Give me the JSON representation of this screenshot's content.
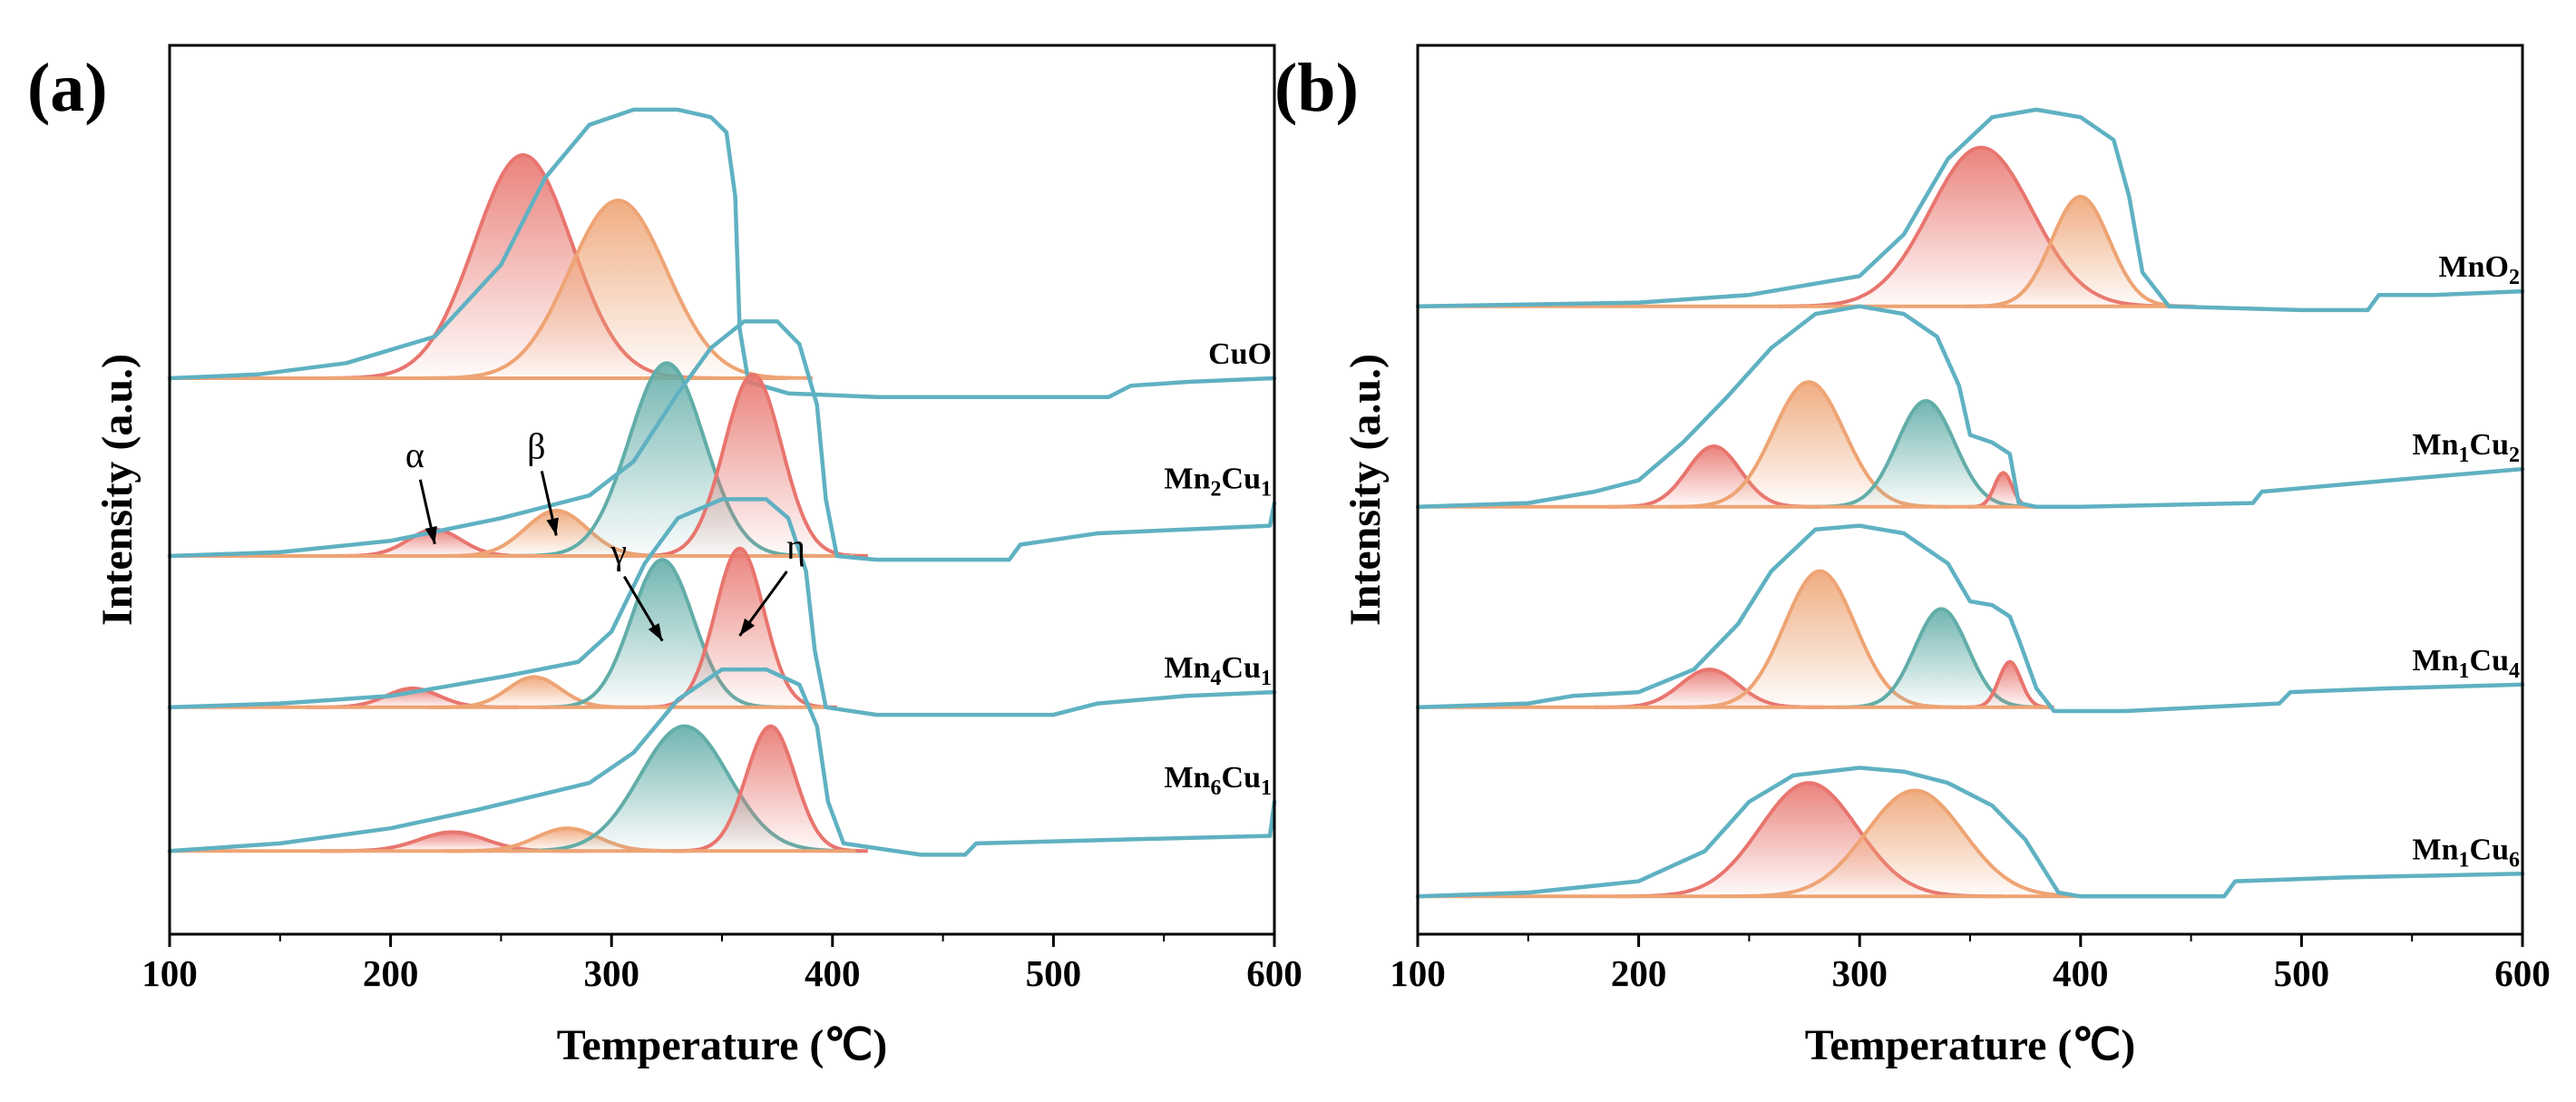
{
  "colors": {
    "envelope": "#5fb1c2",
    "red": "#e8756e",
    "orange": "#eea474",
    "teal": "#62ada8",
    "axis": "#000000"
  },
  "chart_data": [
    {
      "type": "line",
      "panel_label": "(a)",
      "xlabel": "Temperature (℃)",
      "ylabel": "Intensity (a.u.)",
      "xlim": [
        100,
        600
      ],
      "xticks": [
        "100",
        "200",
        "300",
        "400",
        "500",
        "600"
      ],
      "traces": [
        {
          "name": "CuO",
          "label_main": "CuO",
          "label_sub": "",
          "baseline": 1.47,
          "points": [
            [
              100,
              1.47
            ],
            [
              140,
              1.48
            ],
            [
              180,
              1.51
            ],
            [
              220,
              1.58
            ],
            [
              250,
              1.77
            ],
            [
              270,
              2.0
            ],
            [
              290,
              2.14
            ],
            [
              310,
              2.18
            ],
            [
              330,
              2.18
            ],
            [
              345,
              2.16
            ],
            [
              352,
              2.12
            ],
            [
              356,
              1.95
            ],
            [
              358,
              1.6
            ],
            [
              362,
              1.46
            ],
            [
              380,
              1.43
            ],
            [
              420,
              1.42
            ],
            [
              480,
              1.42
            ],
            [
              525,
              1.42
            ],
            [
              535,
              1.45
            ],
            [
              560,
              1.46
            ],
            [
              600,
              1.47
            ]
          ],
          "peaks": [
            {
              "center": 260,
              "height": 0.59,
              "sigma": 22,
              "color": "red"
            },
            {
              "center": 303,
              "height": 0.47,
              "sigma": 22,
              "color": "orange"
            }
          ]
        },
        {
          "name": "Mn2Cu1",
          "label_main": "Mn",
          "label_sub": "",
          "label_parts": [
            "Mn",
            "2",
            "Cu",
            "1"
          ],
          "baseline": 1.0,
          "points": [
            [
              100,
              1.0
            ],
            [
              150,
              1.01
            ],
            [
              200,
              1.04
            ],
            [
              250,
              1.1
            ],
            [
              290,
              1.16
            ],
            [
              310,
              1.25
            ],
            [
              330,
              1.43
            ],
            [
              345,
              1.55
            ],
            [
              360,
              1.62
            ],
            [
              375,
              1.62
            ],
            [
              385,
              1.56
            ],
            [
              393,
              1.4
            ],
            [
              397,
              1.15
            ],
            [
              402,
              1.0
            ],
            [
              420,
              0.99
            ],
            [
              480,
              0.99
            ],
            [
              485,
              1.03
            ],
            [
              520,
              1.06
            ],
            [
              560,
              1.07
            ],
            [
              598,
              1.08
            ],
            [
              600,
              1.14
            ]
          ],
          "peaks": [
            {
              "center": 220,
              "height": 0.07,
              "sigma": 12,
              "color": "red"
            },
            {
              "center": 275,
              "height": 0.12,
              "sigma": 14,
              "color": "orange"
            },
            {
              "center": 325,
              "height": 0.51,
              "sigma": 17,
              "color": "teal"
            },
            {
              "center": 364,
              "height": 0.48,
              "sigma": 13,
              "color": "red"
            }
          ],
          "annotations": [
            {
              "symbol": "α",
              "center": 220
            },
            {
              "symbol": "β",
              "center": 275
            }
          ]
        },
        {
          "name": "Mn4Cu1",
          "label_main": "Mn",
          "label_sub": "",
          "label_parts": [
            "Mn",
            "4",
            "Cu",
            "1"
          ],
          "baseline": 0.6,
          "points": [
            [
              100,
              0.6
            ],
            [
              150,
              0.61
            ],
            [
              200,
              0.63
            ],
            [
              250,
              0.68
            ],
            [
              285,
              0.72
            ],
            [
              300,
              0.8
            ],
            [
              315,
              0.98
            ],
            [
              330,
              1.1
            ],
            [
              350,
              1.15
            ],
            [
              370,
              1.15
            ],
            [
              380,
              1.1
            ],
            [
              388,
              0.96
            ],
            [
              392,
              0.75
            ],
            [
              397,
              0.6
            ],
            [
              420,
              0.58
            ],
            [
              500,
              0.58
            ],
            [
              520,
              0.61
            ],
            [
              560,
              0.63
            ],
            [
              600,
              0.64
            ]
          ],
          "peaks": [
            {
              "center": 210,
              "height": 0.05,
              "sigma": 12,
              "color": "red"
            },
            {
              "center": 265,
              "height": 0.08,
              "sigma": 12,
              "color": "orange"
            },
            {
              "center": 323,
              "height": 0.39,
              "sigma": 14,
              "color": "teal"
            },
            {
              "center": 358,
              "height": 0.42,
              "sigma": 11,
              "color": "red"
            }
          ],
          "annotations": [
            {
              "symbol": "γ",
              "center": 323
            },
            {
              "symbol": "η",
              "center": 358
            }
          ]
        },
        {
          "name": "Mn6Cu1",
          "label_main": "Mn",
          "label_sub": "",
          "label_parts": [
            "Mn",
            "6",
            "Cu",
            "1"
          ],
          "baseline": 0.22,
          "points": [
            [
              100,
              0.22
            ],
            [
              150,
              0.24
            ],
            [
              200,
              0.28
            ],
            [
              240,
              0.33
            ],
            [
              290,
              0.4
            ],
            [
              310,
              0.48
            ],
            [
              330,
              0.62
            ],
            [
              350,
              0.7
            ],
            [
              370,
              0.7
            ],
            [
              385,
              0.66
            ],
            [
              393,
              0.55
            ],
            [
              398,
              0.35
            ],
            [
              405,
              0.24
            ],
            [
              440,
              0.21
            ],
            [
              460,
              0.21
            ],
            [
              465,
              0.24
            ],
            [
              530,
              0.25
            ],
            [
              598,
              0.26
            ],
            [
              600,
              0.35
            ]
          ],
          "peaks": [
            {
              "center": 228,
              "height": 0.05,
              "sigma": 15,
              "color": "red"
            },
            {
              "center": 280,
              "height": 0.06,
              "sigma": 14,
              "color": "orange"
            },
            {
              "center": 333,
              "height": 0.33,
              "sigma": 20,
              "color": "teal"
            },
            {
              "center": 372,
              "height": 0.33,
              "sigma": 11,
              "color": "red"
            }
          ]
        }
      ]
    },
    {
      "type": "line",
      "panel_label": "(b)",
      "xlabel": "Temperature (℃)",
      "ylabel": "Intensity (a.u.)",
      "xlim": [
        100,
        600
      ],
      "xticks": [
        "100",
        "200",
        "300",
        "400",
        "500",
        "600"
      ],
      "traces": [
        {
          "name": "MnO2",
          "label_main": "MnO",
          "label_sub": "",
          "label_parts": [
            "MnO",
            "2",
            "",
            ""
          ],
          "baseline": 1.66,
          "points": [
            [
              100,
              1.66
            ],
            [
              200,
              1.67
            ],
            [
              250,
              1.69
            ],
            [
              300,
              1.74
            ],
            [
              320,
              1.85
            ],
            [
              340,
              2.05
            ],
            [
              360,
              2.16
            ],
            [
              380,
              2.18
            ],
            [
              400,
              2.16
            ],
            [
              415,
              2.1
            ],
            [
              422,
              1.95
            ],
            [
              428,
              1.75
            ],
            [
              440,
              1.66
            ],
            [
              500,
              1.65
            ],
            [
              530,
              1.65
            ],
            [
              535,
              1.69
            ],
            [
              560,
              1.69
            ],
            [
              600,
              1.7
            ]
          ],
          "peaks": [
            {
              "center": 355,
              "height": 0.42,
              "sigma": 23,
              "color": "red"
            },
            {
              "center": 400,
              "height": 0.29,
              "sigma": 13,
              "color": "orange"
            }
          ]
        },
        {
          "name": "Mn1Cu2",
          "label_main": "Mn",
          "label_sub": "",
          "label_parts": [
            "Mn",
            "1",
            "Cu",
            "2"
          ],
          "baseline": 1.13,
          "points": [
            [
              100,
              1.13
            ],
            [
              150,
              1.14
            ],
            [
              180,
              1.17
            ],
            [
              200,
              1.2
            ],
            [
              220,
              1.3
            ],
            [
              240,
              1.42
            ],
            [
              260,
              1.55
            ],
            [
              280,
              1.64
            ],
            [
              300,
              1.66
            ],
            [
              320,
              1.64
            ],
            [
              335,
              1.58
            ],
            [
              345,
              1.45
            ],
            [
              350,
              1.32
            ],
            [
              360,
              1.3
            ],
            [
              368,
              1.27
            ],
            [
              372,
              1.14
            ],
            [
              380,
              1.13
            ],
            [
              400,
              1.13
            ],
            [
              478,
              1.14
            ],
            [
              482,
              1.17
            ],
            [
              540,
              1.2
            ],
            [
              600,
              1.23
            ]
          ],
          "peaks": [
            {
              "center": 234,
              "height": 0.16,
              "sigma": 12,
              "color": "red"
            },
            {
              "center": 277,
              "height": 0.33,
              "sigma": 16,
              "color": "orange"
            },
            {
              "center": 330,
              "height": 0.28,
              "sigma": 13,
              "color": "teal"
            },
            {
              "center": 365,
              "height": 0.09,
              "sigma": 4,
              "color": "red"
            }
          ]
        },
        {
          "name": "Mn1Cu4",
          "label_main": "Mn",
          "label_sub": "",
          "label_parts": [
            "Mn",
            "1",
            "Cu",
            "4"
          ],
          "baseline": 0.6,
          "points": [
            [
              100,
              0.6
            ],
            [
              150,
              0.61
            ],
            [
              170,
              0.63
            ],
            [
              200,
              0.64
            ],
            [
              225,
              0.7
            ],
            [
              245,
              0.82
            ],
            [
              260,
              0.96
            ],
            [
              280,
              1.07
            ],
            [
              300,
              1.08
            ],
            [
              320,
              1.06
            ],
            [
              340,
              0.98
            ],
            [
              350,
              0.88
            ],
            [
              360,
              0.87
            ],
            [
              368,
              0.84
            ],
            [
              372,
              0.78
            ],
            [
              380,
              0.65
            ],
            [
              388,
              0.59
            ],
            [
              420,
              0.59
            ],
            [
              490,
              0.61
            ],
            [
              495,
              0.64
            ],
            [
              540,
              0.65
            ],
            [
              600,
              0.66
            ]
          ],
          "peaks": [
            {
              "center": 232,
              "height": 0.1,
              "sigma": 13,
              "color": "red"
            },
            {
              "center": 282,
              "height": 0.36,
              "sigma": 16,
              "color": "orange"
            },
            {
              "center": 337,
              "height": 0.26,
              "sigma": 12,
              "color": "teal"
            },
            {
              "center": 368,
              "height": 0.12,
              "sigma": 5,
              "color": "red"
            }
          ]
        },
        {
          "name": "Mn1Cu6",
          "label_main": "Mn",
          "label_sub": "",
          "label_parts": [
            "Mn",
            "1",
            "Cu",
            "6"
          ],
          "baseline": 0.1,
          "points": [
            [
              100,
              0.1
            ],
            [
              150,
              0.11
            ],
            [
              200,
              0.14
            ],
            [
              230,
              0.22
            ],
            [
              250,
              0.35
            ],
            [
              270,
              0.42
            ],
            [
              300,
              0.44
            ],
            [
              320,
              0.43
            ],
            [
              340,
              0.4
            ],
            [
              360,
              0.34
            ],
            [
              375,
              0.25
            ],
            [
              390,
              0.11
            ],
            [
              400,
              0.1
            ],
            [
              465,
              0.1
            ],
            [
              470,
              0.14
            ],
            [
              520,
              0.15
            ],
            [
              600,
              0.16
            ]
          ],
          "peaks": [
            {
              "center": 277,
              "height": 0.3,
              "sigma": 22,
              "color": "red"
            },
            {
              "center": 325,
              "height": 0.28,
              "sigma": 22,
              "color": "orange"
            }
          ]
        }
      ]
    }
  ]
}
